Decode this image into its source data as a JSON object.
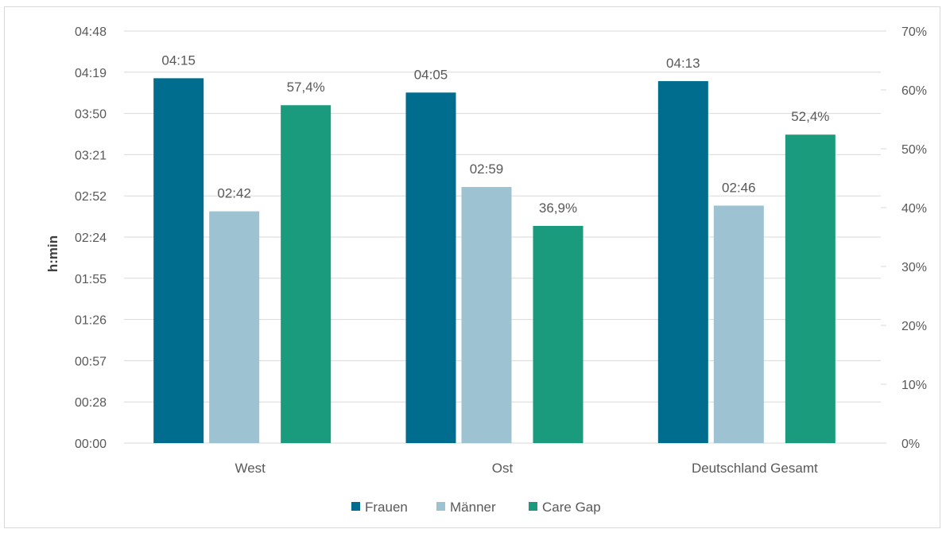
{
  "chart_data": {
    "type": "bar",
    "categories": [
      "West",
      "Ost",
      "Deutschland Gesamt"
    ],
    "ylabel": "h:min",
    "left_axis": {
      "unit": "minutes",
      "ylim": [
        0,
        288
      ],
      "tick_labels": [
        "00:00",
        "00:28",
        "00:57",
        "01:26",
        "01:55",
        "02:24",
        "02:52",
        "03:21",
        "03:50",
        "04:19",
        "04:48"
      ]
    },
    "right_axis": {
      "unit": "percent",
      "ylim": [
        0,
        70
      ],
      "tick_labels": [
        "0%",
        "10%",
        "20%",
        "30%",
        "40%",
        "50%",
        "60%",
        "70%"
      ]
    },
    "series": [
      {
        "name": "Frauen",
        "axis": "left",
        "color": "#006C8E",
        "values_minutes": [
          255,
          245,
          253
        ],
        "labels": [
          "04:15",
          "04:05",
          "04:13"
        ]
      },
      {
        "name": "Männer",
        "axis": "left",
        "color": "#9DC3D2",
        "values_minutes": [
          162,
          179,
          166
        ],
        "labels": [
          "02:42",
          "02:59",
          "02:46"
        ]
      },
      {
        "name": "Care Gap",
        "axis": "right",
        "color": "#1A9B7D",
        "values_percent": [
          57.4,
          36.9,
          52.4
        ],
        "labels": [
          "57,4%",
          "36,9%",
          "52,4%"
        ]
      }
    ],
    "legend_position": "bottom",
    "grid": true
  }
}
